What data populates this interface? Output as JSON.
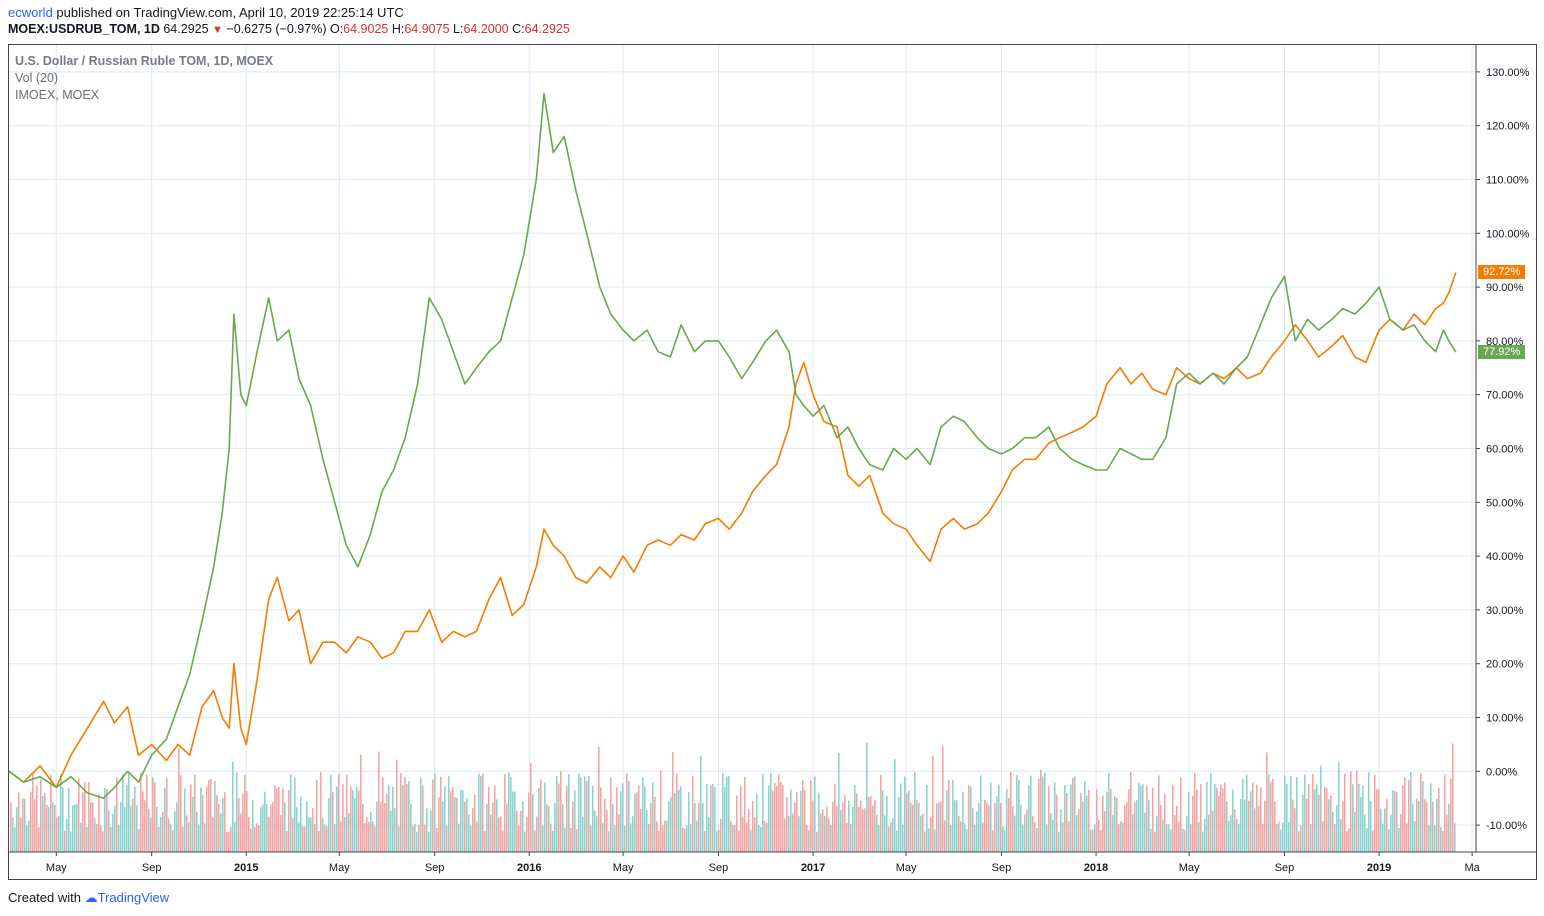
{
  "header": {
    "user": "ecworld",
    "published": " published on TradingView.com, April 10, 2019 22:25:14 UTC"
  },
  "symbol_row": {
    "symbol": "MOEX:USDRUB_TOM, 1D",
    "last": "64.2925",
    "change": "−0.6275 (−0.97%)",
    "o_label": "O:",
    "o": "64.9025",
    "h_label": "H:",
    "h": "64.9075",
    "l_label": "L:",
    "l": "64.2000",
    "c_label": "C:",
    "c": "64.2925"
  },
  "legend": {
    "main": "U.S. Dollar / Russian Ruble TOM, 1D, MOEX",
    "vol": "Vol (20)",
    "compare": "IMOEX, MOEX"
  },
  "footer": {
    "created": "Created with ",
    "brand": "TradingView"
  },
  "colors": {
    "usdrub": "#f57c00",
    "imoex": "#6aa84f",
    "vol_up": "#8fd3cf",
    "vol_down": "#f4a6a6",
    "grid": "#dceaf5"
  },
  "chart_data": {
    "type": "line",
    "ylim": [
      -15,
      135
    ],
    "y_ticks": [
      "130.00%",
      "120.00%",
      "110.00%",
      "100.00%",
      "90.00%",
      "80.00%",
      "70.00%",
      "60.00%",
      "50.00%",
      "40.00%",
      "30.00%",
      "20.00%",
      "10.00%",
      "0.00%",
      "-10.00%"
    ],
    "y_tick_values": [
      130,
      120,
      110,
      100,
      90,
      80,
      70,
      60,
      50,
      40,
      30,
      20,
      10,
      0,
      -10
    ],
    "x_ticks": [
      {
        "label": "May",
        "bold": false
      },
      {
        "label": "Sep",
        "bold": false
      },
      {
        "label": "2015",
        "bold": true
      },
      {
        "label": "May",
        "bold": false
      },
      {
        "label": "Sep",
        "bold": false
      },
      {
        "label": "2016",
        "bold": true
      },
      {
        "label": "May",
        "bold": false
      },
      {
        "label": "Sep",
        "bold": false
      },
      {
        "label": "2017",
        "bold": true
      },
      {
        "label": "May",
        "bold": false
      },
      {
        "label": "Sep",
        "bold": false
      },
      {
        "label": "2018",
        "bold": true
      },
      {
        "label": "May",
        "bold": false
      },
      {
        "label": "Sep",
        "bold": false
      },
      {
        "label": "2019",
        "bold": true
      },
      {
        "label": "Ma",
        "bold": false
      }
    ],
    "x_tick_dates": [
      "2014-05-01",
      "2014-09-01",
      "2015-01-01",
      "2015-05-01",
      "2015-09-01",
      "2016-01-01",
      "2016-05-01",
      "2016-09-01",
      "2017-01-01",
      "2017-05-01",
      "2017-09-01",
      "2018-01-01",
      "2018-05-01",
      "2018-09-01",
      "2019-01-01",
      "2019-05-01"
    ],
    "x_range": [
      "2014-03-01",
      "2019-05-06"
    ],
    "series": [
      {
        "name": "U.S. Dollar / Russian Ruble TOM",
        "badge": "92.72%",
        "points": [
          [
            "2014-03-01",
            0
          ],
          [
            "2014-03-20",
            -2
          ],
          [
            "2014-04-10",
            1
          ],
          [
            "2014-05-01",
            -3
          ],
          [
            "2014-05-20",
            3
          ],
          [
            "2014-06-10",
            8
          ],
          [
            "2014-07-01",
            13
          ],
          [
            "2014-07-15",
            9
          ],
          [
            "2014-08-01",
            12
          ],
          [
            "2014-08-15",
            3
          ],
          [
            "2014-09-01",
            5
          ],
          [
            "2014-09-20",
            2
          ],
          [
            "2014-10-05",
            5
          ],
          [
            "2014-10-20",
            3
          ],
          [
            "2014-11-05",
            12
          ],
          [
            "2014-11-20",
            15
          ],
          [
            "2014-12-01",
            10
          ],
          [
            "2014-12-10",
            8
          ],
          [
            "2014-12-16",
            20
          ],
          [
            "2014-12-25",
            8
          ],
          [
            "2015-01-01",
            5
          ],
          [
            "2015-01-15",
            17
          ],
          [
            "2015-01-30",
            32
          ],
          [
            "2015-02-10",
            36
          ],
          [
            "2015-02-25",
            28
          ],
          [
            "2015-03-10",
            30
          ],
          [
            "2015-03-25",
            20
          ],
          [
            "2015-04-10",
            24
          ],
          [
            "2015-04-25",
            24
          ],
          [
            "2015-05-10",
            22
          ],
          [
            "2015-05-25",
            25
          ],
          [
            "2015-06-10",
            24
          ],
          [
            "2015-06-25",
            21
          ],
          [
            "2015-07-10",
            22
          ],
          [
            "2015-07-25",
            26
          ],
          [
            "2015-08-10",
            26
          ],
          [
            "2015-08-25",
            30
          ],
          [
            "2015-09-10",
            24
          ],
          [
            "2015-09-25",
            26
          ],
          [
            "2015-10-10",
            25
          ],
          [
            "2015-10-25",
            26
          ],
          [
            "2015-11-10",
            32
          ],
          [
            "2015-11-25",
            36
          ],
          [
            "2015-12-10",
            29
          ],
          [
            "2015-12-25",
            31
          ],
          [
            "2016-01-10",
            38
          ],
          [
            "2016-01-20",
            45
          ],
          [
            "2016-02-01",
            42
          ],
          [
            "2016-02-15",
            40
          ],
          [
            "2016-03-01",
            36
          ],
          [
            "2016-03-15",
            35
          ],
          [
            "2016-04-01",
            38
          ],
          [
            "2016-04-15",
            36
          ],
          [
            "2016-05-01",
            40
          ],
          [
            "2016-05-15",
            37
          ],
          [
            "2016-06-01",
            42
          ],
          [
            "2016-06-15",
            43
          ],
          [
            "2016-07-01",
            42
          ],
          [
            "2016-07-15",
            44
          ],
          [
            "2016-08-01",
            43
          ],
          [
            "2016-08-15",
            46
          ],
          [
            "2016-09-01",
            47
          ],
          [
            "2016-09-15",
            45
          ],
          [
            "2016-10-01",
            48
          ],
          [
            "2016-10-15",
            52
          ],
          [
            "2016-11-01",
            55
          ],
          [
            "2016-11-15",
            57
          ],
          [
            "2016-12-01",
            64
          ],
          [
            "2016-12-10",
            72
          ],
          [
            "2016-12-20",
            76
          ],
          [
            "2017-01-01",
            70
          ],
          [
            "2017-01-15",
            65
          ],
          [
            "2017-02-01",
            64
          ],
          [
            "2017-02-15",
            55
          ],
          [
            "2017-03-01",
            53
          ],
          [
            "2017-03-15",
            55
          ],
          [
            "2017-04-01",
            48
          ],
          [
            "2017-04-15",
            46
          ],
          [
            "2017-05-01",
            45
          ],
          [
            "2017-05-15",
            42
          ],
          [
            "2017-06-01",
            39
          ],
          [
            "2017-06-15",
            45
          ],
          [
            "2017-07-01",
            47
          ],
          [
            "2017-07-15",
            45
          ],
          [
            "2017-08-01",
            46
          ],
          [
            "2017-08-15",
            48
          ],
          [
            "2017-09-01",
            52
          ],
          [
            "2017-09-15",
            56
          ],
          [
            "2017-10-01",
            58
          ],
          [
            "2017-10-15",
            58
          ],
          [
            "2017-11-01",
            61
          ],
          [
            "2017-11-15",
            62
          ],
          [
            "2017-12-01",
            63
          ],
          [
            "2017-12-15",
            64
          ],
          [
            "2018-01-01",
            66
          ],
          [
            "2018-01-15",
            72
          ],
          [
            "2018-02-01",
            75
          ],
          [
            "2018-02-15",
            72
          ],
          [
            "2018-03-01",
            74
          ],
          [
            "2018-03-15",
            71
          ],
          [
            "2018-04-01",
            70
          ],
          [
            "2018-04-15",
            75
          ],
          [
            "2018-05-01",
            73
          ],
          [
            "2018-05-15",
            72
          ],
          [
            "2018-06-01",
            74
          ],
          [
            "2018-06-15",
            73
          ],
          [
            "2018-07-01",
            75
          ],
          [
            "2018-07-15",
            73
          ],
          [
            "2018-08-01",
            74
          ],
          [
            "2018-08-15",
            77
          ],
          [
            "2018-09-01",
            80
          ],
          [
            "2018-09-15",
            83
          ],
          [
            "2018-10-01",
            80
          ],
          [
            "2018-10-15",
            77
          ],
          [
            "2018-11-01",
            79
          ],
          [
            "2018-11-15",
            81
          ],
          [
            "2018-12-01",
            77
          ],
          [
            "2018-12-15",
            76
          ],
          [
            "2019-01-01",
            82
          ],
          [
            "2019-01-15",
            84
          ],
          [
            "2019-02-01",
            82
          ],
          [
            "2019-02-15",
            85
          ],
          [
            "2019-03-01",
            83
          ],
          [
            "2019-03-15",
            86
          ],
          [
            "2019-03-25",
            87
          ],
          [
            "2019-04-01",
            89
          ],
          [
            "2019-04-10",
            92.72
          ]
        ]
      },
      {
        "name": "IMOEX",
        "badge": "77.92%",
        "points": [
          [
            "2014-03-01",
            0
          ],
          [
            "2014-03-20",
            -2
          ],
          [
            "2014-04-10",
            -1
          ],
          [
            "2014-05-01",
            -3
          ],
          [
            "2014-05-20",
            -1
          ],
          [
            "2014-06-10",
            -4
          ],
          [
            "2014-07-01",
            -5
          ],
          [
            "2014-07-15",
            -3
          ],
          [
            "2014-08-01",
            0
          ],
          [
            "2014-08-15",
            -2
          ],
          [
            "2014-09-01",
            3
          ],
          [
            "2014-09-20",
            6
          ],
          [
            "2014-10-05",
            12
          ],
          [
            "2014-10-20",
            18
          ],
          [
            "2014-11-05",
            28
          ],
          [
            "2014-11-20",
            38
          ],
          [
            "2014-12-01",
            48
          ],
          [
            "2014-12-10",
            60
          ],
          [
            "2014-12-16",
            85
          ],
          [
            "2014-12-25",
            70
          ],
          [
            "2015-01-01",
            68
          ],
          [
            "2015-01-15",
            78
          ],
          [
            "2015-01-30",
            88
          ],
          [
            "2015-02-10",
            80
          ],
          [
            "2015-02-25",
            82
          ],
          [
            "2015-03-10",
            73
          ],
          [
            "2015-03-25",
            68
          ],
          [
            "2015-04-10",
            58
          ],
          [
            "2015-04-25",
            50
          ],
          [
            "2015-05-10",
            42
          ],
          [
            "2015-05-25",
            38
          ],
          [
            "2015-06-10",
            44
          ],
          [
            "2015-06-25",
            52
          ],
          [
            "2015-07-10",
            56
          ],
          [
            "2015-07-25",
            62
          ],
          [
            "2015-08-10",
            72
          ],
          [
            "2015-08-25",
            88
          ],
          [
            "2015-09-10",
            84
          ],
          [
            "2015-09-25",
            78
          ],
          [
            "2015-10-10",
            72
          ],
          [
            "2015-10-25",
            75
          ],
          [
            "2015-11-10",
            78
          ],
          [
            "2015-11-25",
            80
          ],
          [
            "2015-12-10",
            88
          ],
          [
            "2015-12-25",
            96
          ],
          [
            "2016-01-10",
            110
          ],
          [
            "2016-01-20",
            126
          ],
          [
            "2016-02-01",
            115
          ],
          [
            "2016-02-15",
            118
          ],
          [
            "2016-03-01",
            108
          ],
          [
            "2016-03-15",
            100
          ],
          [
            "2016-04-01",
            90
          ],
          [
            "2016-04-15",
            85
          ],
          [
            "2016-05-01",
            82
          ],
          [
            "2016-05-15",
            80
          ],
          [
            "2016-06-01",
            82
          ],
          [
            "2016-06-15",
            78
          ],
          [
            "2016-07-01",
            77
          ],
          [
            "2016-07-15",
            83
          ],
          [
            "2016-08-01",
            78
          ],
          [
            "2016-08-15",
            80
          ],
          [
            "2016-09-01",
            80
          ],
          [
            "2016-09-15",
            77
          ],
          [
            "2016-10-01",
            73
          ],
          [
            "2016-10-15",
            76
          ],
          [
            "2016-11-01",
            80
          ],
          [
            "2016-11-15",
            82
          ],
          [
            "2016-12-01",
            78
          ],
          [
            "2016-12-10",
            70
          ],
          [
            "2016-12-20",
            68
          ],
          [
            "2017-01-01",
            66
          ],
          [
            "2017-01-15",
            68
          ],
          [
            "2017-02-01",
            62
          ],
          [
            "2017-02-15",
            64
          ],
          [
            "2017-03-01",
            60
          ],
          [
            "2017-03-15",
            57
          ],
          [
            "2017-04-01",
            56
          ],
          [
            "2017-04-15",
            60
          ],
          [
            "2017-05-01",
            58
          ],
          [
            "2017-05-15",
            60
          ],
          [
            "2017-06-01",
            57
          ],
          [
            "2017-06-15",
            64
          ],
          [
            "2017-07-01",
            66
          ],
          [
            "2017-07-15",
            65
          ],
          [
            "2017-08-01",
            62
          ],
          [
            "2017-08-15",
            60
          ],
          [
            "2017-09-01",
            59
          ],
          [
            "2017-09-15",
            60
          ],
          [
            "2017-10-01",
            62
          ],
          [
            "2017-10-15",
            62
          ],
          [
            "2017-11-01",
            64
          ],
          [
            "2017-11-15",
            60
          ],
          [
            "2017-12-01",
            58
          ],
          [
            "2017-12-15",
            57
          ],
          [
            "2018-01-01",
            56
          ],
          [
            "2018-01-15",
            56
          ],
          [
            "2018-02-01",
            60
          ],
          [
            "2018-02-15",
            59
          ],
          [
            "2018-03-01",
            58
          ],
          [
            "2018-03-15",
            58
          ],
          [
            "2018-04-01",
            62
          ],
          [
            "2018-04-15",
            72
          ],
          [
            "2018-05-01",
            74
          ],
          [
            "2018-05-15",
            72
          ],
          [
            "2018-06-01",
            74
          ],
          [
            "2018-06-15",
            72
          ],
          [
            "2018-07-01",
            75
          ],
          [
            "2018-07-15",
            77
          ],
          [
            "2018-08-01",
            83
          ],
          [
            "2018-08-15",
            88
          ],
          [
            "2018-09-01",
            92
          ],
          [
            "2018-09-15",
            80
          ],
          [
            "2018-10-01",
            84
          ],
          [
            "2018-10-15",
            82
          ],
          [
            "2018-11-01",
            84
          ],
          [
            "2018-11-15",
            86
          ],
          [
            "2018-12-01",
            85
          ],
          [
            "2018-12-15",
            87
          ],
          [
            "2019-01-01",
            90
          ],
          [
            "2019-01-15",
            84
          ],
          [
            "2019-02-01",
            82
          ],
          [
            "2019-02-15",
            83
          ],
          [
            "2019-03-01",
            80
          ],
          [
            "2019-03-15",
            78
          ],
          [
            "2019-03-25",
            82
          ],
          [
            "2019-04-01",
            80
          ],
          [
            "2019-04-10",
            77.92
          ]
        ]
      }
    ]
  }
}
